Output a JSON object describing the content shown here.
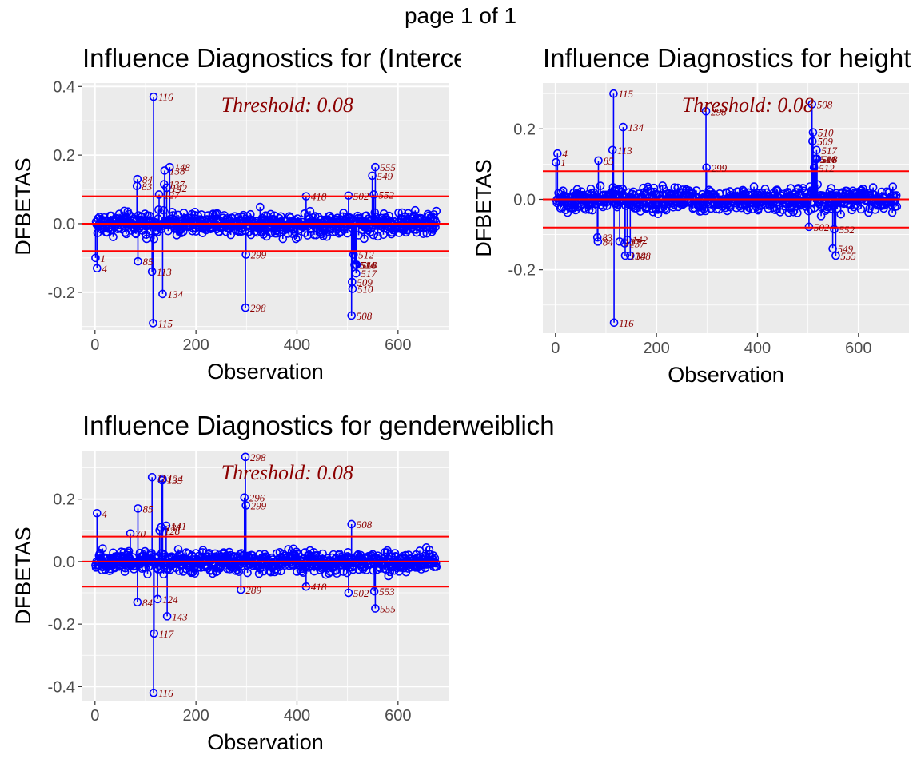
{
  "page_title": "page 1 of 1",
  "chart_data": [
    {
      "type": "scatter",
      "title": "Influence Diagnostics for (Intercept)",
      "xlabel": "Observation",
      "ylabel": "DFBETAS",
      "xlim": [
        -25,
        700
      ],
      "ylim": [
        -0.31,
        0.41
      ],
      "xticks": [
        0,
        200,
        400,
        600
      ],
      "xtick_labels": [
        "0",
        "200",
        "400",
        "600"
      ],
      "yticks": [
        -0.2,
        0,
        0.2,
        0.4
      ],
      "ytick_labels": [
        "-0.2",
        "0.0",
        "0.2",
        "0.4"
      ],
      "threshold": 0.08,
      "threshold_label": "Threshold: 0.08",
      "n_obs": 676,
      "labeled_points": [
        {
          "x": 116,
          "y": 0.37,
          "label": "116"
        },
        {
          "x": 115,
          "y": -0.29,
          "label": "115"
        },
        {
          "x": 134,
          "y": -0.205,
          "label": "134"
        },
        {
          "x": 113,
          "y": -0.14,
          "label": "113"
        },
        {
          "x": 148,
          "y": 0.165,
          "label": "148"
        },
        {
          "x": 138,
          "y": 0.155,
          "label": "138"
        },
        {
          "x": 137,
          "y": 0.115,
          "label": "137"
        },
        {
          "x": 142,
          "y": 0.105,
          "label": "142"
        },
        {
          "x": 127,
          "y": 0.085,
          "label": "127"
        },
        {
          "x": 84,
          "y": 0.13,
          "label": "84"
        },
        {
          "x": 83,
          "y": 0.11,
          "label": "83"
        },
        {
          "x": 85,
          "y": -0.11,
          "label": "85"
        },
        {
          "x": 4,
          "y": -0.13,
          "label": "4"
        },
        {
          "x": 1,
          "y": -0.1,
          "label": "1"
        },
        {
          "x": 298,
          "y": -0.245,
          "label": "298"
        },
        {
          "x": 299,
          "y": -0.09,
          "label": "299"
        },
        {
          "x": 418,
          "y": 0.08,
          "label": "418"
        },
        {
          "x": 502,
          "y": 0.082,
          "label": "502"
        },
        {
          "x": 508,
          "y": -0.268,
          "label": "508"
        },
        {
          "x": 509,
          "y": -0.17,
          "label": "509"
        },
        {
          "x": 510,
          "y": -0.19,
          "label": "510"
        },
        {
          "x": 517,
          "y": -0.145,
          "label": "517"
        },
        {
          "x": 512,
          "y": -0.09,
          "label": "512"
        },
        {
          "x": 514,
          "y": -0.12,
          "label": "514"
        },
        {
          "x": 516,
          "y": -0.12,
          "label": "516"
        },
        {
          "x": 518,
          "y": -0.12,
          "label": "518"
        },
        {
          "x": 552,
          "y": 0.085,
          "label": "552"
        },
        {
          "x": 549,
          "y": 0.14,
          "label": "549"
        },
        {
          "x": 555,
          "y": 0.165,
          "label": "555"
        }
      ]
    },
    {
      "type": "scatter",
      "title": "Influence Diagnostics for height",
      "xlabel": "Observation",
      "ylabel": "DFBETAS",
      "xlim": [
        -25,
        700
      ],
      "ylim": [
        -0.38,
        0.33
      ],
      "xticks": [
        0,
        200,
        400,
        600
      ],
      "xtick_labels": [
        "0",
        "200",
        "400",
        "600"
      ],
      "yticks": [
        -0.2,
        0,
        0.2
      ],
      "ytick_labels": [
        "-0.2",
        "0.0",
        "0.2"
      ],
      "threshold": 0.08,
      "threshold_label": "Threshold: 0.08",
      "n_obs": 676,
      "labeled_points": [
        {
          "x": 115,
          "y": 0.3,
          "label": "115"
        },
        {
          "x": 116,
          "y": -0.35,
          "label": "116"
        },
        {
          "x": 134,
          "y": 0.205,
          "label": "134"
        },
        {
          "x": 113,
          "y": 0.14,
          "label": "113"
        },
        {
          "x": 85,
          "y": 0.11,
          "label": "85"
        },
        {
          "x": 4,
          "y": 0.13,
          "label": "4"
        },
        {
          "x": 1,
          "y": 0.105,
          "label": "1"
        },
        {
          "x": 84,
          "y": -0.12,
          "label": "84"
        },
        {
          "x": 83,
          "y": -0.108,
          "label": "83"
        },
        {
          "x": 142,
          "y": -0.115,
          "label": "142"
        },
        {
          "x": 127,
          "y": -0.12,
          "label": "127"
        },
        {
          "x": 137,
          "y": -0.125,
          "label": "137"
        },
        {
          "x": 138,
          "y": -0.16,
          "label": "138"
        },
        {
          "x": 148,
          "y": -0.16,
          "label": "148"
        },
        {
          "x": 298,
          "y": 0.25,
          "label": "298"
        },
        {
          "x": 299,
          "y": 0.09,
          "label": "299"
        },
        {
          "x": 502,
          "y": -0.078,
          "label": "502"
        },
        {
          "x": 508,
          "y": 0.27,
          "label": "508"
        },
        {
          "x": 510,
          "y": 0.19,
          "label": "510"
        },
        {
          "x": 509,
          "y": 0.165,
          "label": "509"
        },
        {
          "x": 517,
          "y": 0.14,
          "label": "517"
        },
        {
          "x": 514,
          "y": 0.115,
          "label": "514"
        },
        {
          "x": 516,
          "y": 0.115,
          "label": "516"
        },
        {
          "x": 518,
          "y": 0.115,
          "label": "518"
        },
        {
          "x": 512,
          "y": 0.09,
          "label": "512"
        },
        {
          "x": 552,
          "y": -0.085,
          "label": "552"
        },
        {
          "x": 549,
          "y": -0.14,
          "label": "549"
        },
        {
          "x": 555,
          "y": -0.16,
          "label": "555"
        }
      ]
    },
    {
      "type": "scatter",
      "title": "Influence Diagnostics for genderweiblich",
      "xlabel": "Observation",
      "ylabel": "DFBETAS",
      "xlim": [
        -25,
        700
      ],
      "ylim": [
        -0.445,
        0.355
      ],
      "xticks": [
        0,
        200,
        400,
        600
      ],
      "xtick_labels": [
        "0",
        "200",
        "400",
        "600"
      ],
      "yticks": [
        -0.4,
        -0.2,
        0,
        0.2
      ],
      "ytick_labels": [
        "-0.4",
        "-0.2",
        "0.0",
        "0.2"
      ],
      "threshold": 0.08,
      "threshold_label": "Threshold: 0.08",
      "n_obs": 676,
      "labeled_points": [
        {
          "x": 116,
          "y": -0.42,
          "label": "116"
        },
        {
          "x": 117,
          "y": -0.23,
          "label": "117"
        },
        {
          "x": 113,
          "y": 0.27,
          "label": "113"
        },
        {
          "x": 134,
          "y": 0.265,
          "label": "134"
        },
        {
          "x": 133,
          "y": 0.26,
          "label": "133"
        },
        {
          "x": 143,
          "y": -0.175,
          "label": "143"
        },
        {
          "x": 124,
          "y": -0.12,
          "label": "124"
        },
        {
          "x": 141,
          "y": 0.115,
          "label": "141"
        },
        {
          "x": 131,
          "y": 0.11,
          "label": "131"
        },
        {
          "x": 128,
          "y": 0.1,
          "label": "128"
        },
        {
          "x": 85,
          "y": 0.17,
          "label": "85"
        },
        {
          "x": 84,
          "y": -0.13,
          "label": "84"
        },
        {
          "x": 70,
          "y": 0.09,
          "label": "70"
        },
        {
          "x": 4,
          "y": 0.155,
          "label": "4"
        },
        {
          "x": 298,
          "y": 0.335,
          "label": "298"
        },
        {
          "x": 296,
          "y": 0.205,
          "label": "296"
        },
        {
          "x": 299,
          "y": 0.18,
          "label": "299"
        },
        {
          "x": 289,
          "y": -0.09,
          "label": "289"
        },
        {
          "x": 418,
          "y": -0.08,
          "label": "418"
        },
        {
          "x": 508,
          "y": 0.12,
          "label": "508"
        },
        {
          "x": 502,
          "y": -0.1,
          "label": "502"
        },
        {
          "x": 553,
          "y": -0.095,
          "label": "553"
        },
        {
          "x": 555,
          "y": -0.15,
          "label": "555"
        }
      ]
    }
  ]
}
